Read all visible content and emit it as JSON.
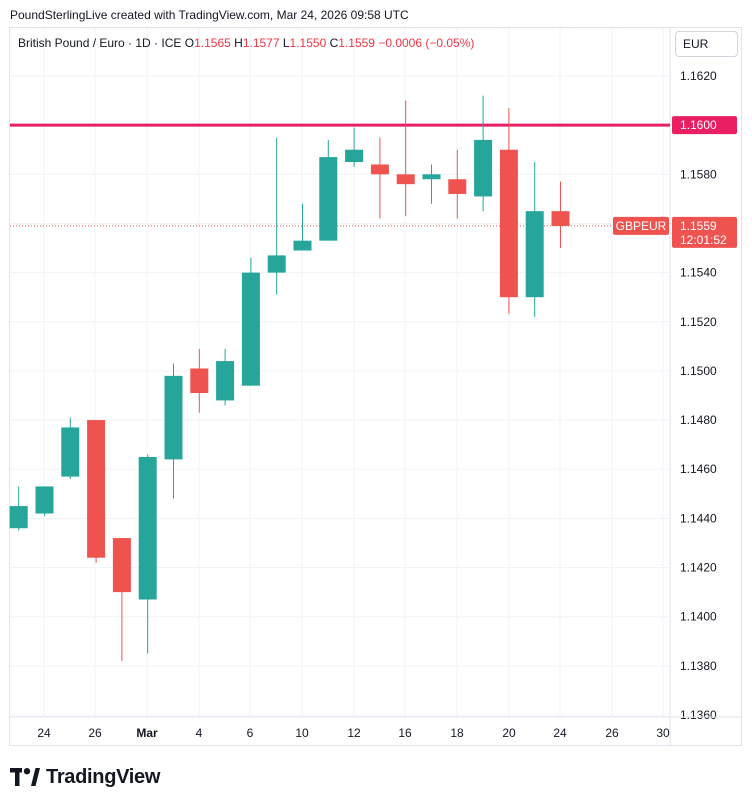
{
  "header": {
    "caption": "PoundSterlingLive created with TradingView.com, Mar 24, 2026 09:58 UTC"
  },
  "legend": {
    "symbol": "British Pound / Euro · 1D · ICE",
    "o_label": "O",
    "o_value": "1.1565",
    "h_label": "H",
    "h_value": "1.1577",
    "l_label": "L",
    "l_value": "1.1550",
    "c_label": "C",
    "c_value": "1.1559",
    "change": "−0.0006 (−0.05%)"
  },
  "currency_label": "EUR",
  "footer": {
    "brand": "TradingView"
  },
  "colors": {
    "up": "#26a69a",
    "down": "#ef5350",
    "level_line": "#e91e63",
    "grid": "#f0f3fa",
    "axis_text": "#131722"
  },
  "chart_data": {
    "type": "candlestick",
    "symbol": "GBPEUR",
    "y_ticks": [
      "1.1620",
      "1.1600",
      "1.1580",
      "1.1560",
      "1.1540",
      "1.1520",
      "1.1500",
      "1.1480",
      "1.1460",
      "1.1440",
      "1.1420",
      "1.1400",
      "1.1380",
      "1.1360"
    ],
    "x_ticks": [
      "24",
      "26",
      "Mar",
      "4",
      "6",
      "10",
      "12",
      "16",
      "18",
      "20",
      "24",
      "26",
      "30"
    ],
    "ylim": [
      1.1357,
      1.1637
    ],
    "level_line": {
      "value": 1.16,
      "label": "1.1600"
    },
    "last_price": {
      "value": 1.1559,
      "label": "1.1559",
      "countdown": "12:01:52",
      "symbol_label": "GBPEUR"
    },
    "candles": [
      {
        "o": 1.1436,
        "h": 1.1453,
        "l": 1.1435,
        "c": 1.1445
      },
      {
        "o": 1.1442,
        "h": 1.1452,
        "l": 1.1441,
        "c": 1.1453
      },
      {
        "o": 1.1457,
        "h": 1.1481,
        "l": 1.1456,
        "c": 1.1477
      },
      {
        "o": 1.148,
        "h": 1.148,
        "l": 1.1422,
        "c": 1.1424
      },
      {
        "o": 1.1432,
        "h": 1.1432,
        "l": 1.1382,
        "c": 1.141
      },
      {
        "o": 1.1407,
        "h": 1.1466,
        "l": 1.1385,
        "c": 1.1465
      },
      {
        "o": 1.1464,
        "h": 1.1503,
        "l": 1.1448,
        "c": 1.1498
      },
      {
        "o": 1.1501,
        "h": 1.1509,
        "l": 1.1483,
        "c": 1.1491
      },
      {
        "o": 1.1488,
        "h": 1.1509,
        "l": 1.1486,
        "c": 1.1504
      },
      {
        "o": 1.1494,
        "h": 1.1546,
        "l": 1.1494,
        "c": 1.154
      },
      {
        "o": 1.154,
        "h": 1.1595,
        "l": 1.1531,
        "c": 1.1547
      },
      {
        "o": 1.1549,
        "h": 1.1568,
        "l": 1.1549,
        "c": 1.1553
      },
      {
        "o": 1.1553,
        "h": 1.1594,
        "l": 1.1553,
        "c": 1.1587
      },
      {
        "o": 1.1585,
        "h": 1.1599,
        "l": 1.1583,
        "c": 1.159
      },
      {
        "o": 1.1584,
        "h": 1.1595,
        "l": 1.1562,
        "c": 1.158
      },
      {
        "o": 1.158,
        "h": 1.161,
        "l": 1.1563,
        "c": 1.1576
      },
      {
        "o": 1.1578,
        "h": 1.1584,
        "l": 1.1568,
        "c": 1.158
      },
      {
        "o": 1.1578,
        "h": 1.159,
        "l": 1.1562,
        "c": 1.1572
      },
      {
        "o": 1.1571,
        "h": 1.1612,
        "l": 1.1565,
        "c": 1.1594
      },
      {
        "o": 1.159,
        "h": 1.1607,
        "l": 1.1523,
        "c": 1.153
      },
      {
        "o": 1.153,
        "h": 1.1585,
        "l": 1.1522,
        "c": 1.1565
      },
      {
        "o": 1.1565,
        "h": 1.1577,
        "l": 1.155,
        "c": 1.1559
      }
    ]
  }
}
